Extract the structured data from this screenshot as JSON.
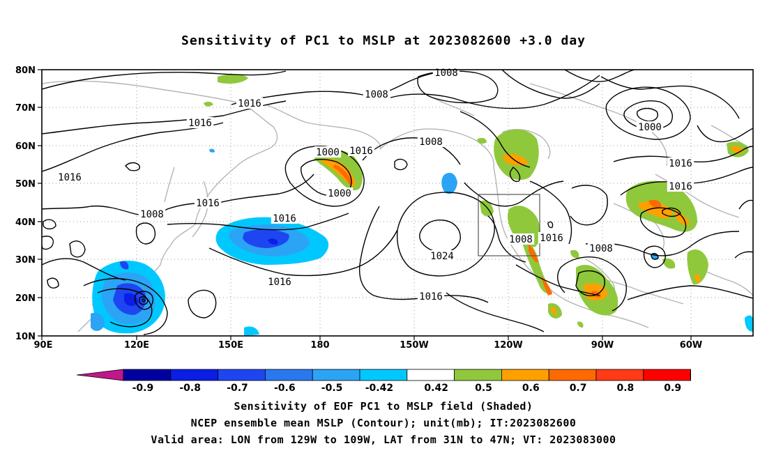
{
  "title": "Sensitivity of PC1 to MSLP at 2023082600 +3.0 day",
  "lat_labels": [
    "80N",
    "70N",
    "60N",
    "50N",
    "40N",
    "30N",
    "20N",
    "10N"
  ],
  "lon_labels": [
    "90E",
    "120E",
    "150E",
    "180",
    "150W",
    "120W",
    "90W",
    "60W"
  ],
  "contour_labels": [
    {
      "text": "1008"
    },
    {
      "text": "1016"
    },
    {
      "text": "1008"
    },
    {
      "text": "1016"
    },
    {
      "text": "1000"
    },
    {
      "text": "1016"
    },
    {
      "text": "1008"
    },
    {
      "text": "1016"
    },
    {
      "text": "1016"
    },
    {
      "text": "1008"
    },
    {
      "text": "1016"
    },
    {
      "text": "1000"
    },
    {
      "text": "1016"
    },
    {
      "text": "1024"
    },
    {
      "text": "1016"
    },
    {
      "text": "1008"
    },
    {
      "text": "1016"
    },
    {
      "text": "1008"
    },
    {
      "text": "1016"
    },
    {
      "text": "1016"
    }
  ],
  "colorbar": {
    "labels": [
      "-0.9",
      "-0.8",
      "-0.7",
      "-0.6",
      "-0.5",
      "-0.42",
      "0.42",
      "0.5",
      "0.6",
      "0.7",
      "0.8",
      "0.9"
    ],
    "colors": [
      "#0000a0",
      "#0a1ee6",
      "#1e46f0",
      "#2a78f0",
      "#2ba4f5",
      "#00c8ff",
      "#ffffff",
      "#90c83c",
      "#ffa000",
      "#ff6a00",
      "#ff3a14",
      "#ff0000"
    ],
    "left_arrow_color": "#c0188c",
    "right_arrow_color": "#ff9ec8"
  },
  "valid_box": {
    "lon_from": "129W",
    "lon_to": "109W",
    "lat_from": "31N",
    "lat_to": "47N"
  },
  "captions": [
    "Sensitivity of EOF PC1 to MSLP field (Shaded)",
    "NCEP ensemble mean MSLP (Contour); unit(mb); IT:2023082600",
    "Valid area: LON from 129W to 109W, LAT from 31N to 47N; VT: 2023083000"
  ]
}
